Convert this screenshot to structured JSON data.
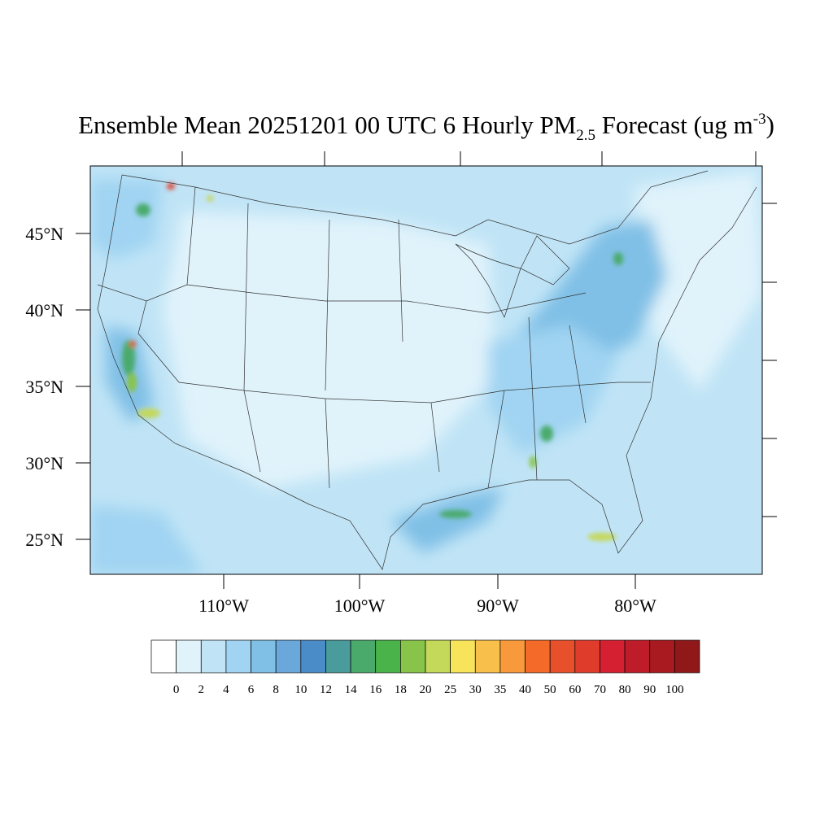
{
  "title": {
    "main": "Ensemble Mean 20251201 00 UTC 6 Hourly PM",
    "subscript": "2.5",
    "rest": " Forecast (ug m",
    "superscript": "-3",
    "end": ")"
  },
  "lat_labels": [
    "45°N",
    "40°N",
    "35°N",
    "30°N",
    "25°N"
  ],
  "lon_labels": [
    "110°W",
    "100°W",
    "90°W",
    "80°W"
  ],
  "colorbar": {
    "colors": [
      "#ffffff",
      "#e0f3fb",
      "#c0e4f6",
      "#a0d4f2",
      "#80c0e6",
      "#6aa8dc",
      "#4a8cc8",
      "#4a9c9c",
      "#4aaa6c",
      "#4ab44a",
      "#88c44a",
      "#c4d85a",
      "#f8e45a",
      "#f8c04a",
      "#f89a3c",
      "#f46a28",
      "#e8502c",
      "#e03c2c",
      "#d42030",
      "#be1c28",
      "#a81a20",
      "#901818"
    ],
    "labels": [
      "0",
      "2",
      "4",
      "6",
      "8",
      "10",
      "12",
      "14",
      "16",
      "18",
      "20",
      "25",
      "30",
      "35",
      "40",
      "50",
      "60",
      "70",
      "80",
      "90",
      "100"
    ]
  }
}
